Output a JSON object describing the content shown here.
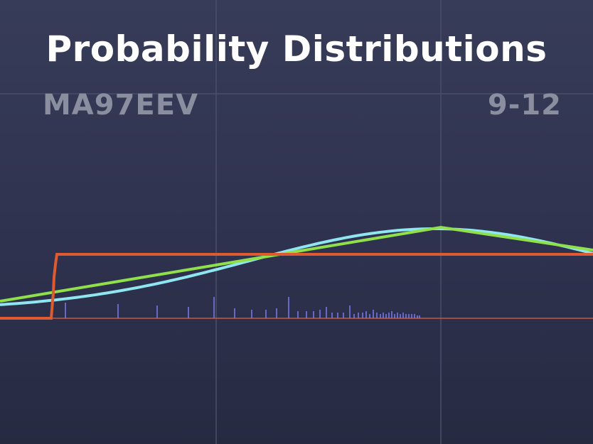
{
  "title": "Probability Distributions",
  "course_code": "MA97EEV",
  "grade_range": "9-12",
  "colors": {
    "background_top": "#373c58",
    "background_bottom": "#262a41",
    "grid": "#4a4f68",
    "axis": "#c9553a",
    "cumulative": "#e05a30",
    "curve_cyan": "#8fe6f0",
    "curve_green": "#8fe04a",
    "spikes": "#7a7cf0",
    "subtitle": "#8a8e9e"
  }
}
